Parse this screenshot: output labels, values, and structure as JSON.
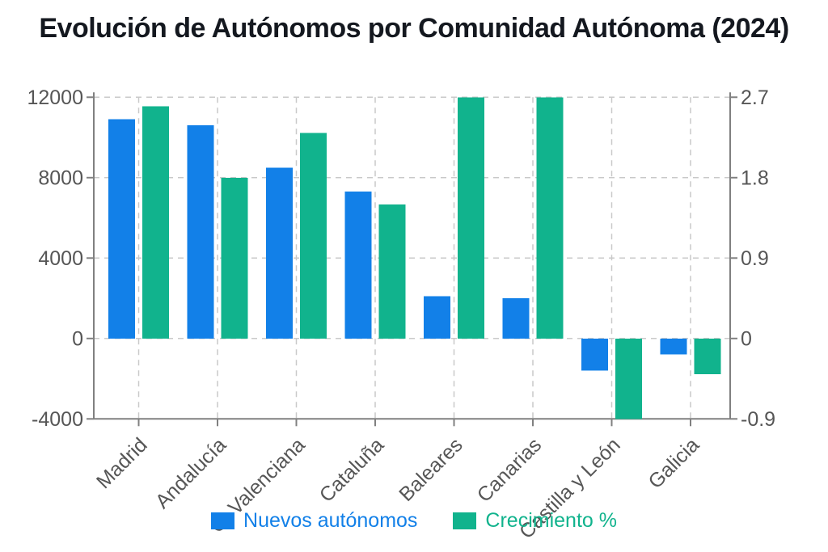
{
  "chart_data": {
    "type": "bar",
    "title": "Evolución de Autónomos por Comunidad Autónoma (2024)",
    "categories": [
      "Madrid",
      "Andalucía",
      "C. Valenciana",
      "Cataluña",
      "Baleares",
      "Canarias",
      "Castilla y León",
      "Galicia"
    ],
    "series": [
      {
        "name": "Nuevos autónomos",
        "axis": "left",
        "color": "#1280e8",
        "values": [
          10900,
          10600,
          8500,
          7300,
          2100,
          2000,
          -1600,
          -800
        ]
      },
      {
        "name": "Crecimiento %",
        "axis": "right",
        "color": "#11b38d",
        "values": [
          2.6,
          1.8,
          2.3,
          1.5,
          2.7,
          2.7,
          -0.9,
          -0.4
        ]
      }
    ],
    "left_axis": {
      "ticks": [
        12000,
        8000,
        4000,
        0,
        -4000
      ],
      "range": [
        -4000,
        12000
      ]
    },
    "right_axis": {
      "ticks": [
        2.7,
        1.8,
        0.9,
        0,
        -0.9
      ],
      "range": [
        -0.9,
        2.7
      ]
    },
    "grid": "dashed horizontal and vertical gridlines",
    "legend_position": "bottom",
    "colors": {
      "axis_line": "#808080",
      "gridline": "#c9c9c9",
      "tick_label": "#565656",
      "title_text": "#14181f",
      "background": "#ffffff"
    }
  }
}
